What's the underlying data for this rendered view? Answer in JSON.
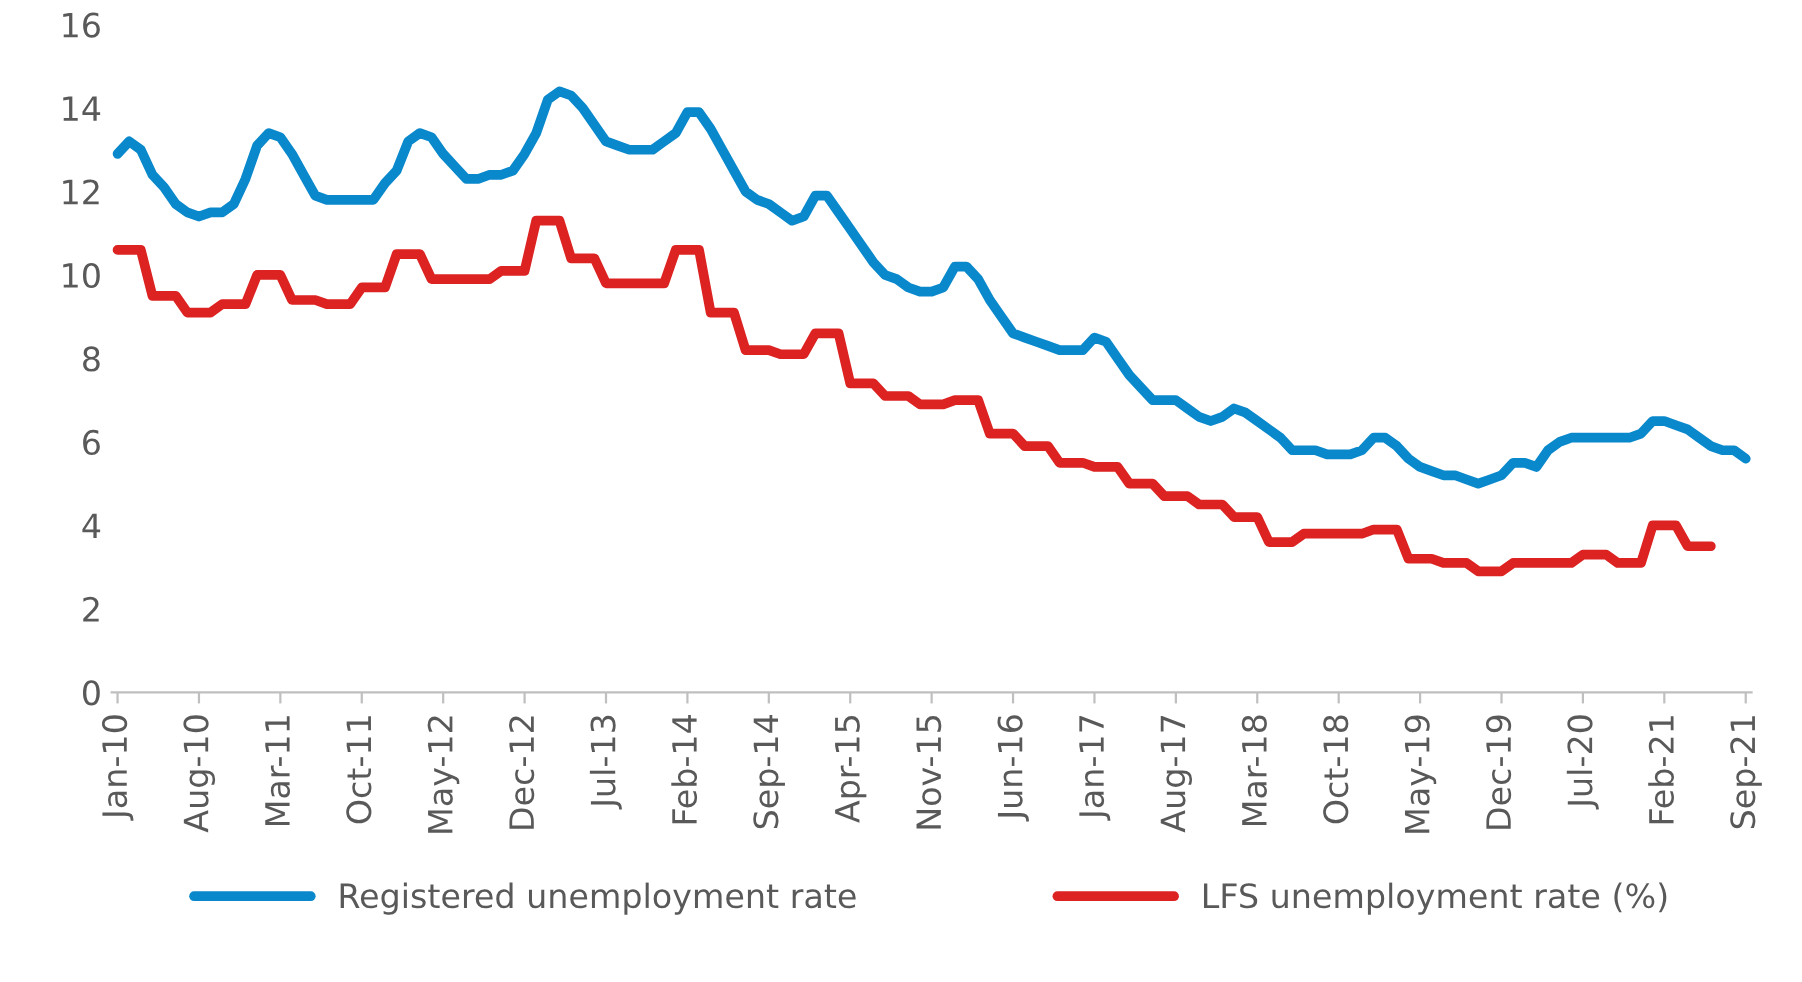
{
  "chart_data": {
    "type": "line",
    "categories": [
      "Jan-10",
      null,
      null,
      null,
      null,
      null,
      null,
      "Aug-10",
      null,
      null,
      null,
      null,
      null,
      null,
      "Mar-11",
      null,
      null,
      null,
      null,
      null,
      null,
      "Oct-11",
      null,
      null,
      null,
      null,
      null,
      null,
      "May-12",
      null,
      null,
      null,
      null,
      null,
      null,
      "Dec-12",
      null,
      null,
      null,
      null,
      null,
      null,
      "Jul-13",
      null,
      null,
      null,
      null,
      null,
      null,
      "Feb-14",
      null,
      null,
      null,
      null,
      null,
      null,
      "Sep-14",
      null,
      null,
      null,
      null,
      null,
      null,
      "Apr-15",
      null,
      null,
      null,
      null,
      null,
      null,
      "Nov-15",
      null,
      null,
      null,
      null,
      null,
      null,
      "Jun-16",
      null,
      null,
      null,
      null,
      null,
      null,
      "Jan-17",
      null,
      null,
      null,
      null,
      null,
      null,
      "Aug-17",
      null,
      null,
      null,
      null,
      null,
      null,
      "Mar-18",
      null,
      null,
      null,
      null,
      null,
      null,
      "Oct-18",
      null,
      null,
      null,
      null,
      null,
      null,
      "May-19",
      null,
      null,
      null,
      null,
      null,
      null,
      "Dec-19",
      null,
      null,
      null,
      null,
      null,
      null,
      "Jul-20",
      null,
      null,
      null,
      null,
      null,
      null,
      "Feb-21",
      null,
      null,
      null,
      null,
      null,
      null,
      "Sep-21"
    ],
    "series": [
      {
        "name": "Registered unemployment rate",
        "color": "#0a88cc",
        "values": [
          12.9,
          13.2,
          13.0,
          12.4,
          12.1,
          11.7,
          11.5,
          11.4,
          11.5,
          11.5,
          11.7,
          12.3,
          13.1,
          13.4,
          13.3,
          12.9,
          12.4,
          11.9,
          11.8,
          11.8,
          11.8,
          11.8,
          11.8,
          12.2,
          12.5,
          13.2,
          13.4,
          13.3,
          12.9,
          12.6,
          12.3,
          12.3,
          12.4,
          12.4,
          12.5,
          12.9,
          13.4,
          14.2,
          14.4,
          14.3,
          14.0,
          13.6,
          13.2,
          13.1,
          13.0,
          13.0,
          13.0,
          13.2,
          13.4,
          13.9,
          13.9,
          13.5,
          13.0,
          12.5,
          12.0,
          11.8,
          11.7,
          11.5,
          11.3,
          11.4,
          11.9,
          11.9,
          11.5,
          11.1,
          10.7,
          10.3,
          10.0,
          9.9,
          9.7,
          9.6,
          9.6,
          9.7,
          10.2,
          10.2,
          9.9,
          9.4,
          9.0,
          8.6,
          8.5,
          8.4,
          8.3,
          8.2,
          8.2,
          8.2,
          8.5,
          8.4,
          8.0,
          7.6,
          7.3,
          7.0,
          7.0,
          7.0,
          6.8,
          6.6,
          6.5,
          6.6,
          6.8,
          6.7,
          6.5,
          6.3,
          6.1,
          5.8,
          5.8,
          5.8,
          5.7,
          5.7,
          5.7,
          5.8,
          6.1,
          6.1,
          5.9,
          5.6,
          5.4,
          5.3,
          5.2,
          5.2,
          5.1,
          5.0,
          5.1,
          5.2,
          5.5,
          5.5,
          5.4,
          5.8,
          6.0,
          6.1,
          6.1,
          6.1,
          6.1,
          6.1,
          6.1,
          6.2,
          6.5,
          6.5,
          6.4,
          6.3,
          6.1,
          5.9,
          5.8,
          5.8,
          5.6
        ]
      },
      {
        "name": "LFS unemployment rate (%)",
        "color": "#dd2222",
        "values": [
          10.6,
          10.6,
          10.6,
          9.5,
          9.5,
          9.5,
          9.1,
          9.1,
          9.1,
          9.3,
          9.3,
          9.3,
          10.0,
          10.0,
          10.0,
          9.4,
          9.4,
          9.4,
          9.3,
          9.3,
          9.3,
          9.7,
          9.7,
          9.7,
          10.5,
          10.5,
          10.5,
          9.9,
          9.9,
          9.9,
          9.9,
          9.9,
          9.9,
          10.1,
          10.1,
          10.1,
          11.3,
          11.3,
          11.3,
          10.4,
          10.4,
          10.4,
          9.8,
          9.8,
          9.8,
          9.8,
          9.8,
          9.8,
          10.6,
          10.6,
          10.6,
          9.1,
          9.1,
          9.1,
          8.2,
          8.2,
          8.2,
          8.1,
          8.1,
          8.1,
          8.6,
          8.6,
          8.6,
          7.4,
          7.4,
          7.4,
          7.1,
          7.1,
          7.1,
          6.9,
          6.9,
          6.9,
          7.0,
          7.0,
          7.0,
          6.2,
          6.2,
          6.2,
          5.9,
          5.9,
          5.9,
          5.5,
          5.5,
          5.5,
          5.4,
          5.4,
          5.4,
          5.0,
          5.0,
          5.0,
          4.7,
          4.7,
          4.7,
          4.5,
          4.5,
          4.5,
          4.2,
          4.2,
          4.2,
          3.6,
          3.6,
          3.6,
          3.8,
          3.8,
          3.8,
          3.8,
          3.8,
          3.8,
          3.9,
          3.9,
          3.9,
          3.2,
          3.2,
          3.2,
          3.1,
          3.1,
          3.1,
          2.9,
          2.9,
          2.9,
          3.1,
          3.1,
          3.1,
          3.1,
          3.1,
          3.1,
          3.3,
          3.3,
          3.3,
          3.1,
          3.1,
          3.1,
          4.0,
          4.0,
          4.0,
          3.5,
          3.5,
          3.5,
          null,
          null,
          null
        ]
      }
    ],
    "ylim": [
      0,
      16
    ],
    "yticks": [
      0,
      2,
      4,
      6,
      8,
      10,
      12,
      14,
      16
    ],
    "grid": false,
    "legend": "bottom",
    "line_style": "solid",
    "marker": "none"
  }
}
